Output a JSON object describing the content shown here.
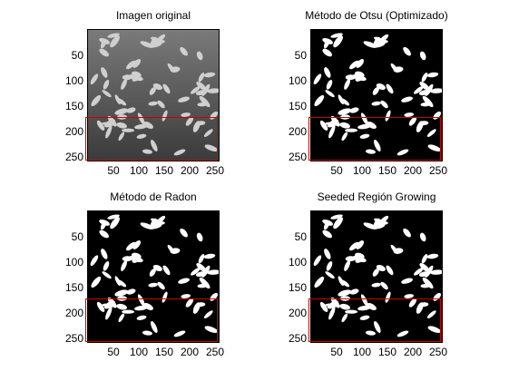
{
  "figure": {
    "panels": [
      {
        "title": "Imagen original",
        "kind": "gray"
      },
      {
        "title": "Método de Otsu (Optimizado)",
        "kind": "bw"
      },
      {
        "title": "Método de Radon",
        "kind": "bw"
      },
      {
        "title": "Seeded Región Growing",
        "kind": "bw"
      }
    ],
    "yticks": [
      "50",
      "100",
      "150",
      "200",
      "250"
    ],
    "xticks": [
      "50",
      "100",
      "150",
      "200",
      "250"
    ],
    "roi_color": "#cc0000"
  }
}
